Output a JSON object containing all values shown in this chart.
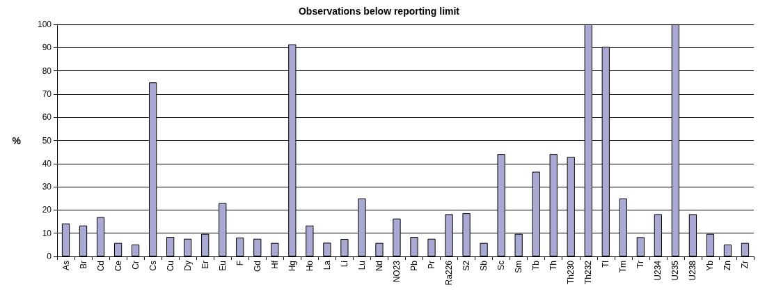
{
  "chart_data": {
    "type": "bar",
    "title": "Observations below reporting limit",
    "ylabel": "%",
    "categories": [
      "As",
      "Br",
      "Cd",
      "Ce",
      "Cr",
      "Cs",
      "Cu",
      "Dy",
      "Er",
      "Eu",
      "F",
      "Gd",
      "Hf",
      "Hg",
      "Ho",
      "La",
      "Li",
      "Lu",
      "Nd",
      "NO23",
      "Pb",
      "Pr",
      "Ra226",
      "S2",
      "Sb",
      "Sc",
      "Sm",
      "Tb",
      "Th",
      "Th230",
      "Th232",
      "Tl",
      "Tm",
      "Tr",
      "U234",
      "U235",
      "U238",
      "Yb",
      "Zn",
      "Zr"
    ],
    "values": [
      14.2,
      13.3,
      16.9,
      5.8,
      5.1,
      75,
      8.4,
      7.6,
      9.7,
      23,
      8.1,
      7.6,
      5.8,
      91.4,
      13.3,
      5.9,
      7.5,
      25,
      5.8,
      16.3,
      8.4,
      7.6,
      18.2,
      18.6,
      5.8,
      44.1,
      9.7,
      36.5,
      44.1,
      42.9,
      100,
      90.3,
      25,
      8.3,
      18.2,
      100,
      18.2,
      9.7,
      5.1,
      5.8
    ],
    "color": "#a9a9d3",
    "ylim": [
      0,
      100
    ],
    "yticks": [
      0,
      10,
      20,
      30,
      40,
      50,
      60,
      70,
      80,
      90,
      100
    ],
    "grid": "y"
  }
}
